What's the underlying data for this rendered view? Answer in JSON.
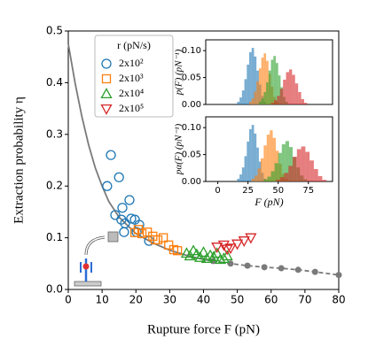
{
  "chart_data": [
    {
      "type": "scatter",
      "xlabel": "Rupture force F (pN)",
      "ylabel": "Extraction probability η",
      "xlim": [
        0,
        80
      ],
      "ylim": [
        0,
        0.5
      ],
      "xticks": [
        0,
        10,
        20,
        30,
        40,
        50,
        60,
        70,
        80
      ],
      "yticks": [
        {
          "value": 0,
          "label": "0.0"
        },
        0.1,
        0.2,
        0.3,
        0.4,
        0.5
      ],
      "legend_title": "r (pN/s)",
      "legend": "upper left",
      "series": [
        {
          "style": "line",
          "color": "#7a7a7a",
          "x": [
            0,
            2,
            4,
            6,
            8,
            10,
            12,
            15,
            20,
            25,
            30,
            35,
            40,
            42.8
          ],
          "values": [
            0.475,
            0.4,
            0.335,
            0.28,
            0.235,
            0.2,
            0.17,
            0.14,
            0.108,
            0.09,
            0.076,
            0.066,
            0.058,
            0.055
          ]
        },
        {
          "style": "dashed",
          "marker": "dot",
          "color": "#7a7a7a",
          "x": [
            42.8,
            48,
            53,
            58,
            63,
            68,
            73,
            80
          ],
          "values": [
            0.055,
            0.05,
            0.046,
            0.043,
            0.041,
            0.038,
            0.034,
            0.028
          ]
        },
        {
          "name": "2x10²",
          "marker": "circle",
          "color": "#1f77b4",
          "x": [
            11.5,
            12.6,
            15.0,
            13.9,
            16.0,
            18.1,
            15.7,
            16.8,
            18.6,
            19.7,
            16.5,
            21.0,
            20.2,
            23.9
          ],
          "values": [
            0.2,
            0.26,
            0.217,
            0.144,
            0.158,
            0.173,
            0.135,
            0.128,
            0.137,
            0.135,
            0.111,
            0.125,
            0.111,
            0.094
          ]
        },
        {
          "name": "2x10³",
          "marker": "square",
          "color": "#ff7f0e",
          "x": [
            19.7,
            21.8,
            23.4,
            25.0,
            26.5,
            28.1,
            29.7,
            31.2,
            32.3,
            25.7,
            20.7
          ],
          "values": [
            0.11,
            0.108,
            0.111,
            0.103,
            0.096,
            0.1,
            0.086,
            0.077,
            0.075,
            0.096,
            0.116
          ]
        },
        {
          "name": "2x10⁴",
          "marker": "triangle-up",
          "color": "#2ca02c",
          "x": [
            35,
            36,
            37,
            38,
            39,
            40,
            41,
            42,
            43,
            44,
            45,
            46,
            47
          ],
          "values": [
            0.07,
            0.065,
            0.075,
            0.068,
            0.062,
            0.072,
            0.06,
            0.066,
            0.063,
            0.07,
            0.058,
            0.06,
            0.065
          ]
        },
        {
          "name": "2x10⁵",
          "marker": "triangle-down",
          "color": "#d62728",
          "x": [
            44,
            46,
            47,
            48,
            50,
            52,
            54
          ],
          "values": [
            0.082,
            0.086,
            0.078,
            0.08,
            0.088,
            0.094,
            0.1
          ]
        }
      ]
    },
    {
      "type": "histogram",
      "ylabel": "p(F) (pN⁻¹)",
      "xlim": [
        -10,
        95
      ],
      "ylim": [
        0,
        0.12
      ],
      "yticks": [
        {
          "value": 0,
          "label": "0.00"
        },
        {
          "value": 0.05,
          "label": "0.05"
        },
        {
          "value": 0.1,
          "label": "0.10"
        }
      ],
      "series": [
        {
          "color": "#1f77b4",
          "bins": [
            16,
            18,
            20,
            22,
            24,
            26,
            28,
            30,
            32,
            34,
            36,
            38,
            40
          ],
          "values": [
            0.005,
            0.013,
            0.026,
            0.047,
            0.074,
            0.097,
            0.105,
            0.089,
            0.063,
            0.037,
            0.016,
            0.005
          ]
        },
        {
          "color": "#ff7f0e",
          "bins": [
            26,
            28,
            30,
            32,
            34,
            36,
            38,
            40,
            42,
            44,
            46,
            48,
            50
          ],
          "values": [
            0.005,
            0.011,
            0.024,
            0.043,
            0.067,
            0.087,
            0.095,
            0.081,
            0.057,
            0.033,
            0.014,
            0.005
          ]
        },
        {
          "color": "#2ca02c",
          "bins": [
            34,
            36,
            38,
            40,
            42,
            44,
            46,
            48,
            50,
            52,
            54,
            56,
            58
          ],
          "values": [
            0.005,
            0.011,
            0.023,
            0.041,
            0.063,
            0.083,
            0.09,
            0.077,
            0.054,
            0.032,
            0.014,
            0.005
          ]
        },
        {
          "color": "#d62728",
          "bins": [
            44,
            46.5,
            49,
            51.5,
            54,
            56.5,
            59,
            61.5,
            64,
            66.5,
            69,
            71.5,
            74
          ],
          "values": [
            0.003,
            0.008,
            0.016,
            0.029,
            0.046,
            0.06,
            0.065,
            0.055,
            0.039,
            0.023,
            0.01,
            0.003
          ]
        }
      ]
    },
    {
      "type": "histogram",
      "ylabel": "pα(F) (pN⁻¹)",
      "xlabel": "F (pN)",
      "xlim": [
        -10,
        95
      ],
      "ylim": [
        0,
        0.12
      ],
      "xticks": [
        0,
        25,
        50,
        75
      ],
      "yticks": [
        {
          "value": 0,
          "label": "0.00"
        },
        {
          "value": 0.05,
          "label": "0.05"
        },
        {
          "value": 0.1,
          "label": "0.10"
        }
      ],
      "series": [
        {
          "color": "#1f77b4",
          "bins": [
            16,
            18,
            20,
            22,
            24,
            26,
            28,
            30,
            32,
            34,
            36,
            38,
            40
          ],
          "values": [
            0.005,
            0.013,
            0.026,
            0.047,
            0.074,
            0.097,
            0.105,
            0.089,
            0.063,
            0.037,
            0.016,
            0.005
          ]
        },
        {
          "color": "#ff7f0e",
          "bins": [
            28,
            30.5,
            33,
            35.5,
            38,
            40.5,
            43,
            45.5,
            48,
            50.5,
            53,
            55.5,
            58
          ],
          "values": [
            0.005,
            0.011,
            0.024,
            0.043,
            0.067,
            0.087,
            0.095,
            0.081,
            0.057,
            0.033,
            0.014,
            0.005
          ]
        },
        {
          "color": "#2ca02c",
          "bins": [
            38,
            41,
            44,
            47,
            50,
            53,
            56,
            59,
            62,
            65,
            68,
            71,
            74
          ],
          "values": [
            0.004,
            0.009,
            0.019,
            0.034,
            0.053,
            0.069,
            0.075,
            0.064,
            0.045,
            0.026,
            0.011,
            0.004
          ]
        },
        {
          "color": "#d62728",
          "bins": [
            48,
            51.5,
            55,
            58.5,
            62,
            65.5,
            69,
            72.5,
            76,
            79.5,
            83,
            86.5,
            90
          ],
          "values": [
            0.003,
            0.008,
            0.016,
            0.029,
            0.046,
            0.06,
            0.065,
            0.055,
            0.039,
            0.023,
            0.01,
            0.003
          ]
        }
      ]
    }
  ]
}
